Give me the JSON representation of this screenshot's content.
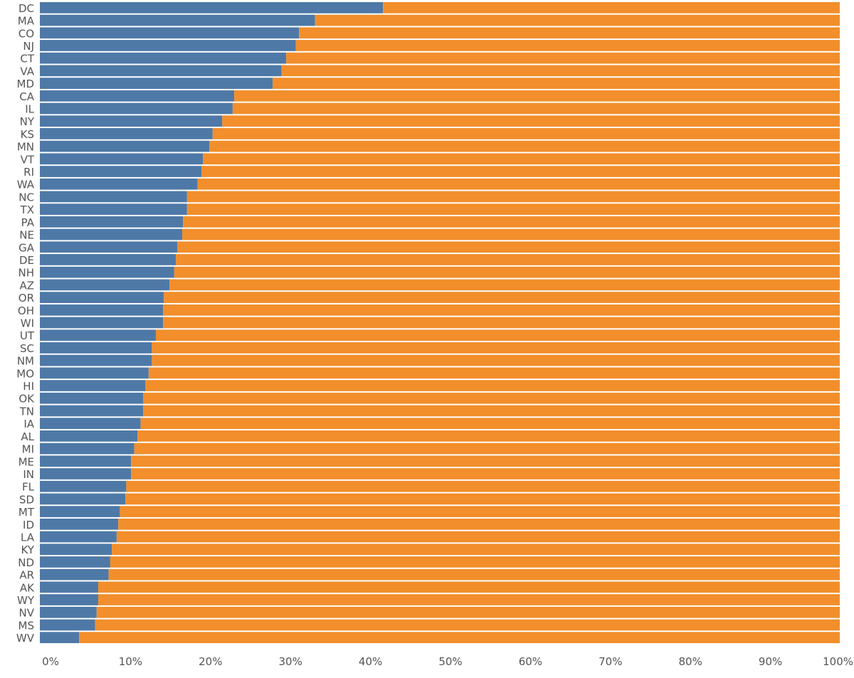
{
  "chart_data": {
    "type": "bar",
    "orientation": "horizontal",
    "stacked": "percent",
    "grid": false,
    "categories": [
      "DC",
      "MA",
      "CO",
      "NJ",
      "CT",
      "VA",
      "MD",
      "CA",
      "IL",
      "NY",
      "KS",
      "MN",
      "VT",
      "RI",
      "WA",
      "NC",
      "TX",
      "PA",
      "NE",
      "GA",
      "DE",
      "NH",
      "AZ",
      "OR",
      "OH",
      "WI",
      "UT",
      "SC",
      "NM",
      "MO",
      "HI",
      "OK",
      "TN",
      "IA",
      "AL",
      "MI",
      "ME",
      "IN",
      "FL",
      "SD",
      "MT",
      "ID",
      "LA",
      "KY",
      "ND",
      "AR",
      "AK",
      "WY",
      "NV",
      "MS",
      "WV"
    ],
    "series": [
      {
        "color": "#4e79a7",
        "values": [
          42.9,
          34.4,
          32.4,
          32.0,
          30.8,
          30.2,
          29.1,
          24.3,
          24.1,
          22.8,
          21.6,
          21.2,
          20.4,
          20.2,
          19.7,
          18.4,
          18.4,
          17.9,
          17.8,
          17.2,
          17.0,
          16.8,
          16.2,
          15.5,
          15.4,
          15.4,
          14.5,
          14.0,
          14.0,
          13.6,
          13.2,
          12.9,
          12.9,
          12.6,
          12.2,
          11.8,
          11.4,
          11.4,
          10.8,
          10.7,
          10.0,
          9.8,
          9.6,
          9.0,
          8.8,
          8.6,
          7.3,
          7.3,
          7.1,
          6.9,
          4.9
        ]
      },
      {
        "color": "#f28e2b",
        "values": [
          57.1,
          65.6,
          67.6,
          68.0,
          69.2,
          69.8,
          70.9,
          75.7,
          75.9,
          77.2,
          78.4,
          78.8,
          79.6,
          79.8,
          80.3,
          81.6,
          81.6,
          82.1,
          82.2,
          82.8,
          83.0,
          83.2,
          83.8,
          84.5,
          84.6,
          84.6,
          85.5,
          86.0,
          86.0,
          86.4,
          86.8,
          87.1,
          87.1,
          87.4,
          87.8,
          88.2,
          88.6,
          88.6,
          89.2,
          89.3,
          90.0,
          90.2,
          90.4,
          91.0,
          91.2,
          91.4,
          92.7,
          92.7,
          92.9,
          93.1,
          95.1
        ]
      }
    ],
    "x_ticks": [
      "0%",
      "10%",
      "20%",
      "30%",
      "40%",
      "50%",
      "60%",
      "70%",
      "80%",
      "90%",
      "100%"
    ],
    "xlim": [
      0,
      100
    ],
    "title": "",
    "xlabel": "",
    "ylabel": ""
  }
}
